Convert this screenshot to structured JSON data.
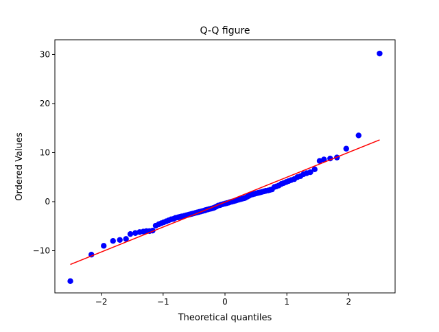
{
  "chart_data": {
    "type": "scatter",
    "title": "Q-Q figure",
    "xlabel": "Theoretical quantiles",
    "ylabel": "Ordered Values",
    "xlim": [
      -2.75,
      2.75
    ],
    "ylim": [
      -18.6,
      33.0
    ],
    "xticks": [
      -2,
      -1,
      0,
      1,
      2
    ],
    "yticks": [
      -10,
      0,
      10,
      20,
      30
    ],
    "xtick_labels": [
      "−2",
      "−1",
      "0",
      "1",
      "2"
    ],
    "ytick_labels": [
      "−10",
      "0",
      "10",
      "20",
      "30"
    ],
    "grid": false,
    "legend": "none",
    "colors": {
      "points": "#0000ff",
      "fit_line": "#ff0000",
      "axes": "#000000"
    },
    "series": [
      {
        "values": [
          [
            -2.5,
            -16.2
          ],
          [
            -2.16,
            -10.8
          ],
          [
            -1.96,
            -9.0
          ],
          [
            -1.81,
            -8.0
          ],
          [
            -1.7,
            -7.8
          ],
          [
            -1.6,
            -7.6
          ],
          [
            -1.53,
            -6.6
          ],
          [
            -1.45,
            -6.4
          ],
          [
            -1.38,
            -6.2
          ],
          [
            -1.32,
            -6.1
          ],
          [
            -1.27,
            -6.0
          ],
          [
            -1.22,
            -6.0
          ],
          [
            -1.17,
            -5.9
          ],
          [
            -1.12,
            -4.9
          ],
          [
            -1.07,
            -4.6
          ],
          [
            -1.03,
            -4.4
          ],
          [
            -0.99,
            -4.2
          ],
          [
            -0.95,
            -4.0
          ],
          [
            -0.91,
            -3.8
          ],
          [
            -0.87,
            -3.6
          ],
          [
            -0.83,
            -3.5
          ],
          [
            -0.8,
            -3.3
          ],
          [
            -0.76,
            -3.2
          ],
          [
            -0.73,
            -3.1
          ],
          [
            -0.7,
            -3.0
          ],
          [
            -0.66,
            -2.9
          ],
          [
            -0.63,
            -2.8
          ],
          [
            -0.6,
            -2.7
          ],
          [
            -0.57,
            -2.6
          ],
          [
            -0.54,
            -2.5
          ],
          [
            -0.51,
            -2.4
          ],
          [
            -0.48,
            -2.3
          ],
          [
            -0.45,
            -2.2
          ],
          [
            -0.42,
            -2.1
          ],
          [
            -0.39,
            -2.0
          ],
          [
            -0.36,
            -1.9
          ],
          [
            -0.33,
            -1.8
          ],
          [
            -0.31,
            -1.7
          ],
          [
            -0.28,
            -1.6
          ],
          [
            -0.25,
            -1.5
          ],
          [
            -0.22,
            -1.4
          ],
          [
            -0.19,
            -1.3
          ],
          [
            -0.17,
            -1.2
          ],
          [
            -0.14,
            -1.0
          ],
          [
            -0.11,
            -0.8
          ],
          [
            -0.08,
            -0.7
          ],
          [
            -0.06,
            -0.6
          ],
          [
            -0.03,
            -0.5
          ],
          [
            0.0,
            -0.4
          ],
          [
            0.03,
            -0.3
          ],
          [
            0.06,
            -0.2
          ],
          [
            0.08,
            -0.1
          ],
          [
            0.11,
            0.0
          ],
          [
            0.14,
            0.1
          ],
          [
            0.17,
            0.2
          ],
          [
            0.19,
            0.3
          ],
          [
            0.22,
            0.4
          ],
          [
            0.25,
            0.5
          ],
          [
            0.28,
            0.6
          ],
          [
            0.31,
            0.7
          ],
          [
            0.33,
            0.8
          ],
          [
            0.36,
            1.0
          ],
          [
            0.39,
            1.2
          ],
          [
            0.42,
            1.4
          ],
          [
            0.45,
            1.5
          ],
          [
            0.48,
            1.6
          ],
          [
            0.51,
            1.7
          ],
          [
            0.54,
            1.8
          ],
          [
            0.57,
            1.9
          ],
          [
            0.6,
            2.0
          ],
          [
            0.63,
            2.1
          ],
          [
            0.66,
            2.2
          ],
          [
            0.7,
            2.3
          ],
          [
            0.73,
            2.4
          ],
          [
            0.76,
            2.5
          ],
          [
            0.8,
            3.0
          ],
          [
            0.83,
            3.1
          ],
          [
            0.87,
            3.3
          ],
          [
            0.91,
            3.6
          ],
          [
            0.95,
            3.8
          ],
          [
            0.99,
            4.0
          ],
          [
            1.03,
            4.2
          ],
          [
            1.07,
            4.4
          ],
          [
            1.12,
            4.6
          ],
          [
            1.17,
            5.0
          ],
          [
            1.22,
            5.2
          ],
          [
            1.27,
            5.6
          ],
          [
            1.32,
            5.8
          ],
          [
            1.38,
            6.0
          ],
          [
            1.45,
            6.6
          ],
          [
            1.53,
            8.3
          ],
          [
            1.6,
            8.6
          ],
          [
            1.7,
            8.8
          ],
          [
            1.81,
            9.0
          ],
          [
            1.96,
            10.8
          ],
          [
            2.16,
            13.5
          ],
          [
            2.5,
            30.2
          ]
        ]
      }
    ],
    "fit_line": {
      "x": [
        -2.5,
        2.5
      ],
      "y": [
        -12.8,
        12.6
      ]
    }
  }
}
